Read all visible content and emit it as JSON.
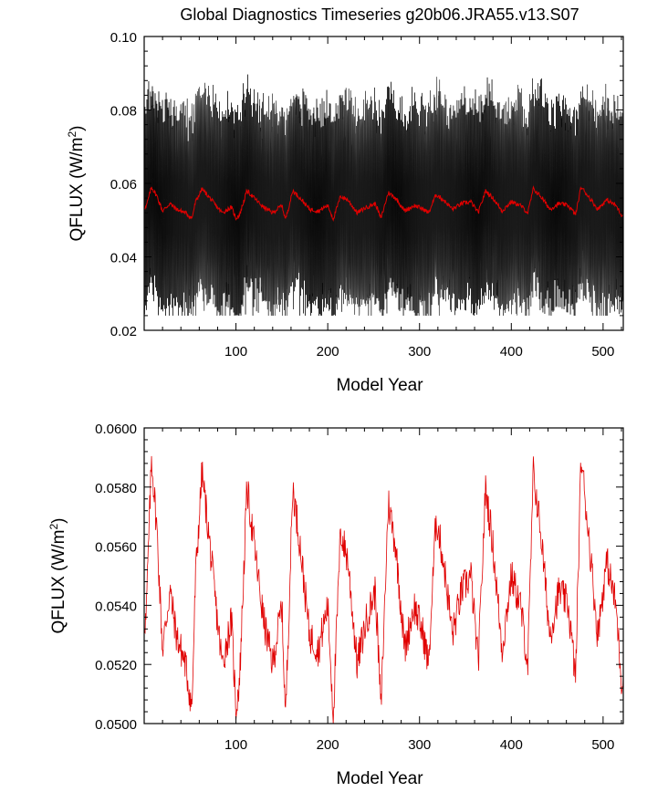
{
  "title": "Global Diagnostics Timeseries g20b06.JRA55.v13.S07",
  "colors": {
    "monthly": "#000000",
    "monthly_peak": "#555555",
    "annual": "#e00000",
    "axis": "#000000"
  },
  "chart_data": [
    {
      "type": "line",
      "xlabel": "Model Year",
      "ylabel_main": "QFLUX (W/m",
      "ylabel_sup": "2",
      "ylabel_tail": ")",
      "xlim": [
        0,
        522
      ],
      "ylim": [
        0.02,
        0.1
      ],
      "xticks": [
        100,
        200,
        300,
        400,
        500
      ],
      "xtick_labels": [
        "100",
        "200",
        "300",
        "400",
        "500"
      ],
      "yticks": [
        0.02,
        0.04,
        0.06,
        0.08,
        0.1
      ],
      "ytick_labels": [
        "0.02",
        "0.04",
        "0.06",
        "0.08",
        "0.10"
      ],
      "series": [
        {
          "kind": "monthly",
          "seasonal_mean": 0.055,
          "seasonal_min": 0.027,
          "seasonal_max": 0.085,
          "overall_min": 0.024,
          "overall_max": 0.09
        },
        {
          "kind": "annual",
          "x": [
            2,
            8,
            14,
            20,
            28,
            35,
            45,
            52,
            56,
            63,
            70,
            78,
            85,
            95,
            100,
            104,
            112,
            120,
            130,
            140,
            150,
            154,
            162,
            170,
            180,
            190,
            200,
            206,
            214,
            222,
            232,
            242,
            252,
            258,
            266,
            274,
            284,
            294,
            304,
            310,
            318,
            326,
            336,
            346,
            356,
            364,
            372,
            380,
            390,
            400,
            410,
            418,
            424,
            432,
            442,
            452,
            462,
            470,
            476,
            484,
            494,
            504,
            514,
            520
          ],
          "y": [
            0.0535,
            0.059,
            0.0565,
            0.0525,
            0.0545,
            0.053,
            0.052,
            0.0505,
            0.055,
            0.0585,
            0.0565,
            0.054,
            0.052,
            0.0535,
            0.0505,
            0.0515,
            0.058,
            0.056,
            0.0535,
            0.052,
            0.054,
            0.0502,
            0.058,
            0.056,
            0.053,
            0.0525,
            0.054,
            0.0503,
            0.0565,
            0.0555,
            0.052,
            0.0535,
            0.0545,
            0.0505,
            0.0575,
            0.056,
            0.0525,
            0.054,
            0.053,
            0.052,
            0.057,
            0.0555,
            0.053,
            0.0545,
            0.055,
            0.052,
            0.058,
            0.056,
            0.0525,
            0.055,
            0.054,
            0.052,
            0.0585,
            0.0565,
            0.053,
            0.0545,
            0.054,
            0.0515,
            0.059,
            0.0565,
            0.053,
            0.0555,
            0.054,
            0.0515
          ]
        }
      ]
    },
    {
      "type": "line",
      "xlabel": "Model Year",
      "ylabel_main": "QFLUX (W/m",
      "ylabel_sup": "2",
      "ylabel_tail": ")",
      "xlim": [
        0,
        522
      ],
      "ylim": [
        0.05,
        0.06
      ],
      "xticks": [
        100,
        200,
        300,
        400,
        500
      ],
      "xtick_labels": [
        "100",
        "200",
        "300",
        "400",
        "500"
      ],
      "yticks": [
        0.05,
        0.052,
        0.054,
        0.056,
        0.058,
        0.06
      ],
      "ytick_labels": [
        "0.0500",
        "0.0520",
        "0.0540",
        "0.0560",
        "0.0580",
        "0.0600"
      ],
      "series": [
        {
          "kind": "annual",
          "same_as": "annual"
        }
      ]
    }
  ]
}
